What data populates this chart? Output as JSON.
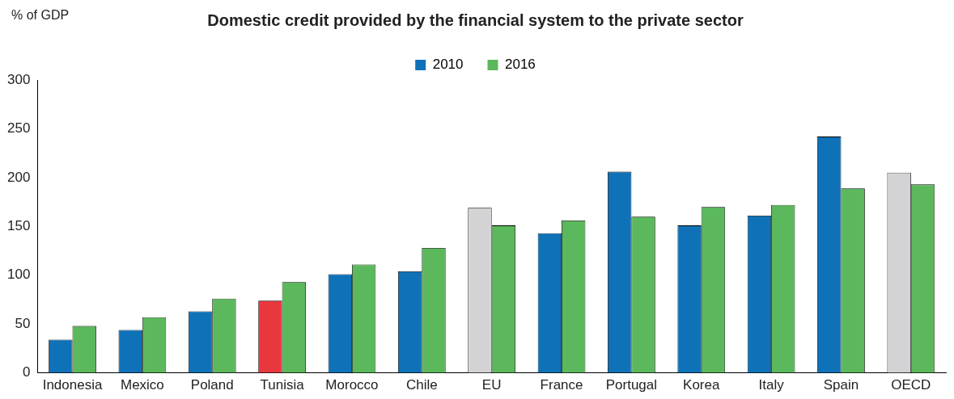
{
  "chart_data": {
    "type": "bar",
    "title": "Domestic credit provided by the financial system to the private sector",
    "ylabel": "% of GDP",
    "categories": [
      "Indonesia",
      "Mexico",
      "Poland",
      "Tunisia",
      "Morocco",
      "Chile",
      "EU",
      "France",
      "Portugal",
      "Korea",
      "Italy",
      "Spain",
      "OECD"
    ],
    "series": [
      {
        "name": "2010",
        "color": "#0f72b8",
        "colors": [
          "#0f72b8",
          "#0f72b8",
          "#0f72b8",
          "#e8383d",
          "#0f72b8",
          "#0f72b8",
          "#d3d3d5",
          "#0f72b8",
          "#0f72b8",
          "#0f72b8",
          "#0f72b8",
          "#0f72b8",
          "#d3d3d5"
        ],
        "values": [
          34,
          44,
          63,
          74,
          101,
          104,
          169,
          143,
          206,
          151,
          161,
          242,
          205
        ]
      },
      {
        "name": "2016",
        "color": "#5cb85c",
        "values": [
          48,
          57,
          76,
          93,
          111,
          128,
          151,
          156,
          160,
          170,
          172,
          189,
          193
        ]
      }
    ],
    "ylim": [
      0,
      300
    ],
    "yticks": [
      0,
      50,
      100,
      150,
      200,
      250,
      300
    ],
    "grid": false,
    "legend": "top"
  }
}
